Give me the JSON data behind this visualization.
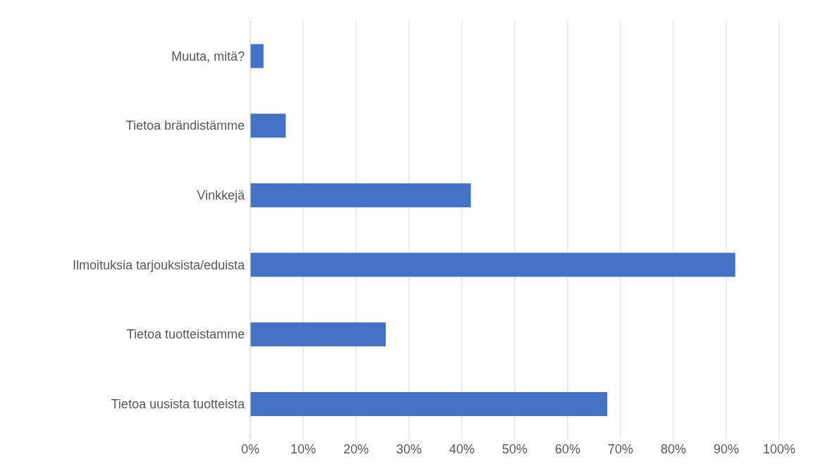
{
  "chart_data": {
    "type": "bar",
    "orientation": "horizontal",
    "categories": [
      "Muuta, mitä?",
      "Tietoa brändistämme",
      "Vinkkejä",
      "Ilmoituksia tarjouksista/eduista",
      "Tietoa tuotteistamme",
      "Tietoa uusista tuotteista"
    ],
    "values": [
      2.5,
      6.7,
      41.7,
      91.7,
      25.6,
      67.5
    ],
    "color": "#4472c4",
    "xlim": [
      0,
      100
    ],
    "xticks": [
      {
        "value": 0,
        "label": "0%"
      },
      {
        "value": 10,
        "label": "10%"
      },
      {
        "value": 20,
        "label": "20%"
      },
      {
        "value": 30,
        "label": "30%"
      },
      {
        "value": 40,
        "label": "40%"
      },
      {
        "value": 50,
        "label": "50%"
      },
      {
        "value": 60,
        "label": "60%"
      },
      {
        "value": 70,
        "label": "70%"
      },
      {
        "value": 80,
        "label": "80%"
      },
      {
        "value": 90,
        "label": "90%"
      },
      {
        "value": 100,
        "label": "100%"
      }
    ],
    "grid": "x"
  }
}
